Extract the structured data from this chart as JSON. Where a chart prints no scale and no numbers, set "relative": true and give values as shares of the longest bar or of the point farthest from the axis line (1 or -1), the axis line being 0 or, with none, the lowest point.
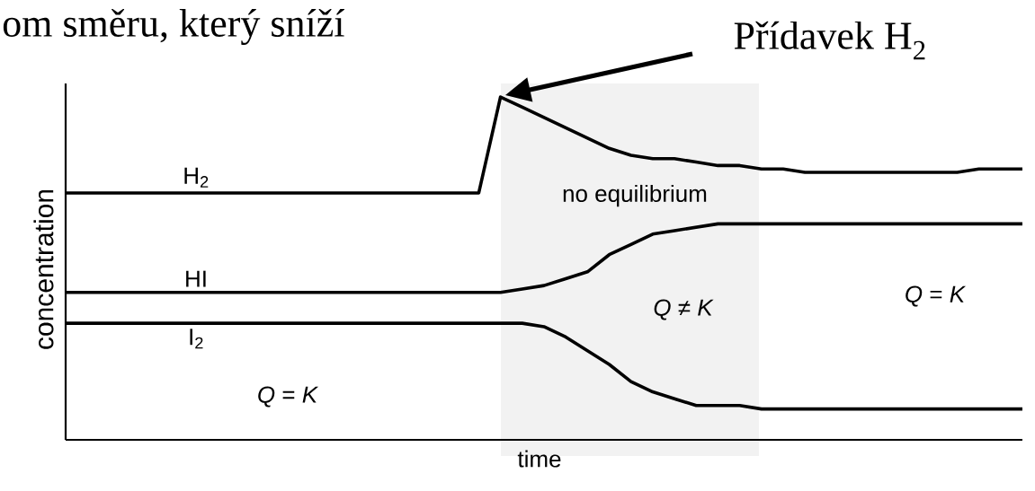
{
  "chart_data": {
    "type": "line",
    "relative": true,
    "title": "om směru, který sníží",
    "xlabel": "time",
    "ylabel": "concentration",
    "categories": [
      null,
      null,
      null,
      null,
      null,
      null,
      null,
      null,
      null,
      null,
      null,
      null,
      null,
      null,
      null,
      null,
      null,
      null,
      null,
      null,
      null,
      null,
      null,
      null,
      null,
      null,
      null,
      null,
      null,
      null,
      null,
      null,
      null,
      null,
      null,
      null,
      null,
      null,
      null,
      null,
      null,
      null,
      null,
      null,
      null
    ],
    "series": [
      {
        "name": "H$_{2}$",
        "color": "#000000",
        "values": [
          0.72,
          0.72,
          0.72,
          0.72,
          0.72,
          0.72,
          0.72,
          0.72,
          0.72,
          0.72,
          0.72,
          0.72,
          0.72,
          0.72,
          0.72,
          0.72,
          0.72,
          0.72,
          0.72,
          0.72,
          1.0,
          0.97,
          0.94,
          0.91,
          0.88,
          0.85,
          0.83,
          0.82,
          0.82,
          0.81,
          0.8,
          0.8,
          0.79,
          0.79,
          0.78,
          0.78,
          0.78,
          0.78,
          0.78,
          0.78,
          0.78,
          0.78,
          0.79,
          0.79,
          0.79
        ]
      },
      {
        "name": "HI",
        "color": "#000000",
        "values": [
          0.43,
          0.43,
          0.43,
          0.43,
          0.43,
          0.43,
          0.43,
          0.43,
          0.43,
          0.43,
          0.43,
          0.43,
          0.43,
          0.43,
          0.43,
          0.43,
          0.43,
          0.43,
          0.43,
          0.43,
          0.43,
          0.44,
          0.45,
          0.47,
          0.49,
          0.54,
          0.57,
          0.6,
          0.61,
          0.62,
          0.63,
          0.63,
          0.63,
          0.63,
          0.63,
          0.63,
          0.63,
          0.63,
          0.63,
          0.63,
          0.63,
          0.63,
          0.63,
          0.63,
          0.63
        ]
      },
      {
        "name": "I$_{2}$",
        "color": "#000000",
        "values": [
          0.34,
          0.34,
          0.34,
          0.34,
          0.34,
          0.34,
          0.34,
          0.34,
          0.34,
          0.34,
          0.34,
          0.34,
          0.34,
          0.34,
          0.34,
          0.34,
          0.34,
          0.34,
          0.34,
          0.34,
          0.34,
          0.34,
          0.33,
          0.3,
          0.26,
          0.22,
          0.17,
          0.14,
          0.12,
          0.1,
          0.1,
          0.1,
          0.09,
          0.09,
          0.09,
          0.09,
          0.09,
          0.09,
          0.09,
          0.09,
          0.09,
          0.09,
          0.09,
          0.09,
          0.09
        ]
      }
    ],
    "annotations": [
      "no equilibrium",
      "*Q* = *K*",
      "*Q* ≠ *K*",
      "*Q* = *K*",
      "Přídavek H$_{2}$"
    ],
    "marker": "none",
    "line_style": "solid"
  }
}
